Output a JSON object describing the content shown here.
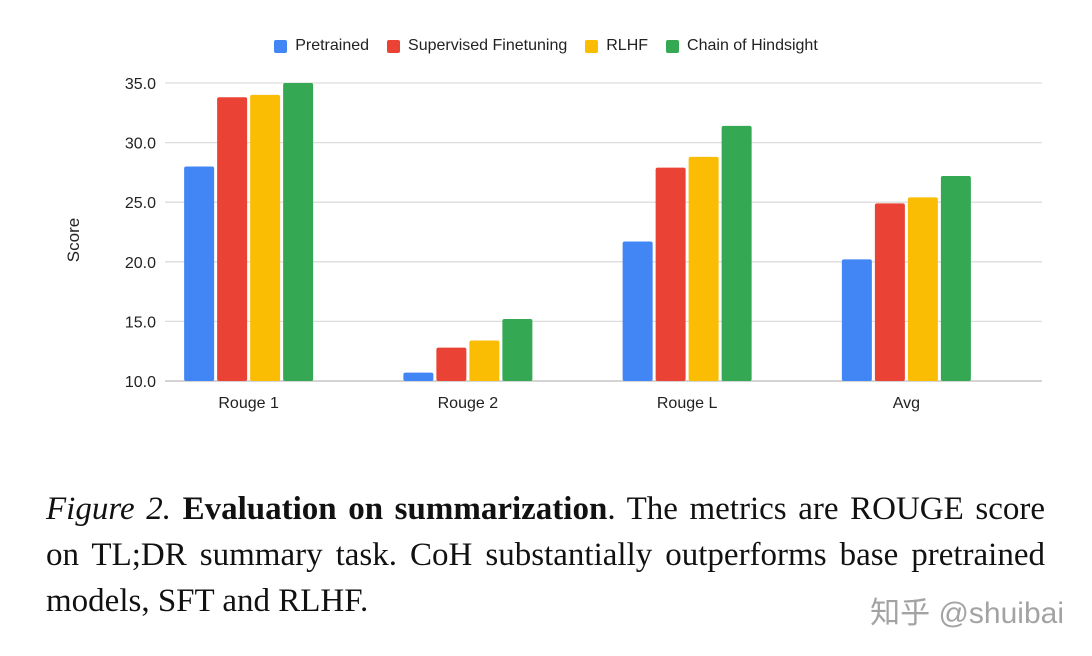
{
  "chart_data": {
    "type": "bar",
    "categories": [
      "Rouge 1",
      "Rouge 2",
      "Rouge L",
      "Avg"
    ],
    "series": [
      {
        "name": "Pretrained",
        "color": "#4285F4",
        "values": [
          28.0,
          10.7,
          21.7,
          20.2
        ]
      },
      {
        "name": "Supervised Finetuning",
        "color": "#EA4335",
        "values": [
          33.8,
          12.8,
          27.9,
          24.9
        ]
      },
      {
        "name": "RLHF",
        "color": "#FBBC04",
        "values": [
          34.0,
          13.4,
          28.8,
          25.4
        ]
      },
      {
        "name": "Chain of Hindsight",
        "color": "#34A853",
        "values": [
          35.0,
          15.2,
          31.4,
          27.2
        ]
      }
    ],
    "ylabel": "Score",
    "xlabel": "",
    "ylim": [
      10,
      35
    ],
    "yticks": [
      "10.0",
      "15.0",
      "20.0",
      "25.0",
      "30.0",
      "35.0"
    ],
    "grid": true,
    "legend_position": "top"
  },
  "caption": {
    "figure_label": "Figure 2.",
    "title": "Evaluation on summarization",
    "text": ". The metrics are ROUGE score on TL;DR summary task. CoH substantially outperforms base pretrained models, SFT and RLHF."
  },
  "watermark": "知乎 @shuibai"
}
